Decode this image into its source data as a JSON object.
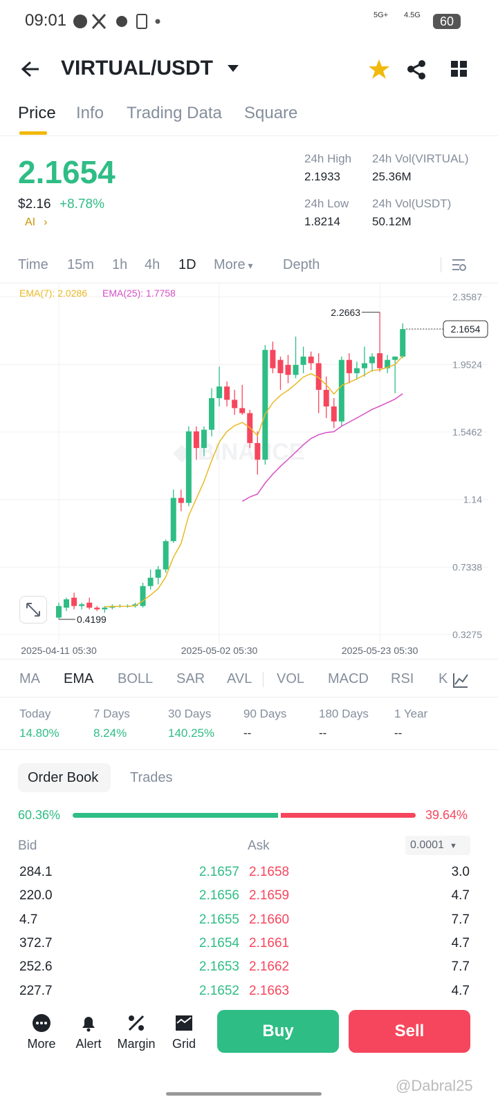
{
  "status_bar": {
    "time": "09:01",
    "net1": "5G+",
    "net2": "4.5G",
    "battery": "60"
  },
  "header": {
    "pair": "VIRTUAL/USDT"
  },
  "tabs": [
    "Price",
    "Info",
    "Trading Data",
    "Square"
  ],
  "price": {
    "last": "2.1654",
    "usd": "$2.16",
    "change": "+8.78%",
    "ai": "AI"
  },
  "stats": [
    {
      "label": "24h High",
      "value": "2.1933"
    },
    {
      "label": "24h Vol(VIRTUAL)",
      "value": "25.36M"
    },
    {
      "label": "24h Low",
      "value": "1.8214"
    },
    {
      "label": "24h Vol(USDT)",
      "value": "50.12M"
    }
  ],
  "intervals": [
    "Time",
    "15m",
    "1h",
    "4h",
    "1D",
    "More",
    "Depth"
  ],
  "chart_data": {
    "type": "candlestick",
    "ema_labels": [
      "EMA(7): 2.0286",
      "EMA(25): 1.7758"
    ],
    "x": [
      "2025-04-11 05:30",
      null,
      null,
      null,
      null,
      null,
      null,
      null,
      null,
      null,
      null,
      null,
      null,
      null,
      null,
      null,
      null,
      null,
      null,
      null,
      null,
      "2025-05-02 05:30",
      null,
      null,
      null,
      null,
      null,
      null,
      null,
      null,
      null,
      null,
      null,
      null,
      null,
      null,
      null,
      null,
      null,
      null,
      null,
      null,
      "2025-05-23 05:30",
      null,
      null,
      null
    ],
    "open": [
      0.43,
      0.49,
      0.55,
      0.5,
      0.52,
      0.49,
      0.48,
      0.49,
      0.5,
      0.5,
      0.5,
      0.5,
      0.62,
      0.67,
      0.72,
      0.89,
      1.15,
      1.12,
      1.55,
      1.45,
      1.56,
      1.75,
      1.82,
      1.74,
      1.69,
      1.66,
      1.48,
      1.38,
      2.04,
      1.98,
      1.95,
      1.89,
      1.95,
      2.0,
      1.96,
      1.8,
      1.7,
      1.61,
      1.98,
      1.9,
      1.93,
      1.96,
      2.02,
      1.93,
      1.98,
      2.0
    ],
    "high": [
      0.52,
      0.55,
      0.58,
      0.52,
      0.55,
      0.5,
      0.5,
      0.51,
      0.51,
      0.51,
      0.52,
      0.64,
      0.72,
      0.74,
      0.9,
      1.2,
      1.2,
      1.58,
      1.58,
      1.58,
      1.81,
      1.94,
      1.85,
      1.8,
      1.83,
      1.68,
      1.55,
      2.07,
      2.09,
      2.0,
      2.01,
      2.12,
      2.06,
      2.03,
      2.02,
      1.88,
      1.75,
      2.0,
      2.02,
      1.97,
      2.06,
      2.02,
      2.2663,
      2.01,
      2.0,
      2.2
    ],
    "low": [
      0.4199,
      0.47,
      0.48,
      0.48,
      0.48,
      0.47,
      0.46,
      0.48,
      0.49,
      0.49,
      0.49,
      0.49,
      0.6,
      0.63,
      0.7,
      0.88,
      1.07,
      1.1,
      1.38,
      1.4,
      1.52,
      1.7,
      1.7,
      1.65,
      1.65,
      1.45,
      1.29,
      1.35,
      1.9,
      1.8,
      1.84,
      1.87,
      1.9,
      1.92,
      1.66,
      1.63,
      1.57,
      1.58,
      1.84,
      1.86,
      1.88,
      1.91,
      1.91,
      1.9,
      1.78,
      1.99
    ],
    "close": [
      0.5,
      0.54,
      0.5,
      0.51,
      0.49,
      0.48,
      0.49,
      0.5,
      0.5,
      0.5,
      0.51,
      0.62,
      0.67,
      0.72,
      0.89,
      1.15,
      1.12,
      1.55,
      1.45,
      1.56,
      1.75,
      1.82,
      1.74,
      1.69,
      1.66,
      1.48,
      1.38,
      2.04,
      1.93,
      1.9,
      1.89,
      1.95,
      2.0,
      1.96,
      1.8,
      1.7,
      1.61,
      1.98,
      1.9,
      1.93,
      1.96,
      2.0,
      1.93,
      1.98,
      2.0,
      2.1654
    ],
    "up_color": "#2ebd85",
    "down_color": "#f6465d",
    "ema_colors": [
      "#e8b923",
      "#d64fc6"
    ],
    "ema_periods": [
      7,
      25
    ],
    "ylim": [
      0.27,
      2.44
    ],
    "yticks": [
      0.3275,
      0.7338,
      1.14,
      1.5462,
      1.9524,
      2.3587
    ],
    "grid": true
  },
  "indicators": [
    "MA",
    "EMA",
    "BOLL",
    "SAR",
    "AVL",
    "VOL",
    "MACD",
    "RSI",
    "K"
  ],
  "performance": [
    {
      "period": "Today",
      "value": "14.80%"
    },
    {
      "period": "7 Days",
      "value": "8.24%"
    },
    {
      "period": "30 Days",
      "value": "140.25%"
    },
    {
      "period": "90 Days",
      "value": "--"
    },
    {
      "period": "180 Days",
      "value": "--"
    },
    {
      "period": "1 Year",
      "value": "--"
    }
  ],
  "order_book": {
    "tabs": [
      "Order Book",
      "Trades"
    ],
    "bid_ratio": {
      "value": 60.36,
      "label": "60.36%"
    },
    "ask_ratio": {
      "value": 39.64,
      "label": "39.64%"
    },
    "bid_label": "Bid",
    "ask_label": "Ask",
    "precision": "0.0001",
    "rows": [
      [
        "284.1",
        "2.1657",
        "2.1658",
        "3.0"
      ],
      [
        "220.0",
        "2.1656",
        "2.1659",
        "4.7"
      ],
      [
        "4.7",
        "2.1655",
        "2.1660",
        "7.7"
      ],
      [
        "372.7",
        "2.1654",
        "2.1661",
        "4.7"
      ],
      [
        "252.6",
        "2.1653",
        "2.1662",
        "7.7"
      ],
      [
        "227.7",
        "2.1652",
        "2.1663",
        "4.7"
      ]
    ]
  },
  "bottom_bar": {
    "items": [
      "More",
      "Alert",
      "Margin",
      "Grid"
    ],
    "buy": "Buy",
    "sell": "Sell"
  },
  "watermark": "@Dabral25"
}
